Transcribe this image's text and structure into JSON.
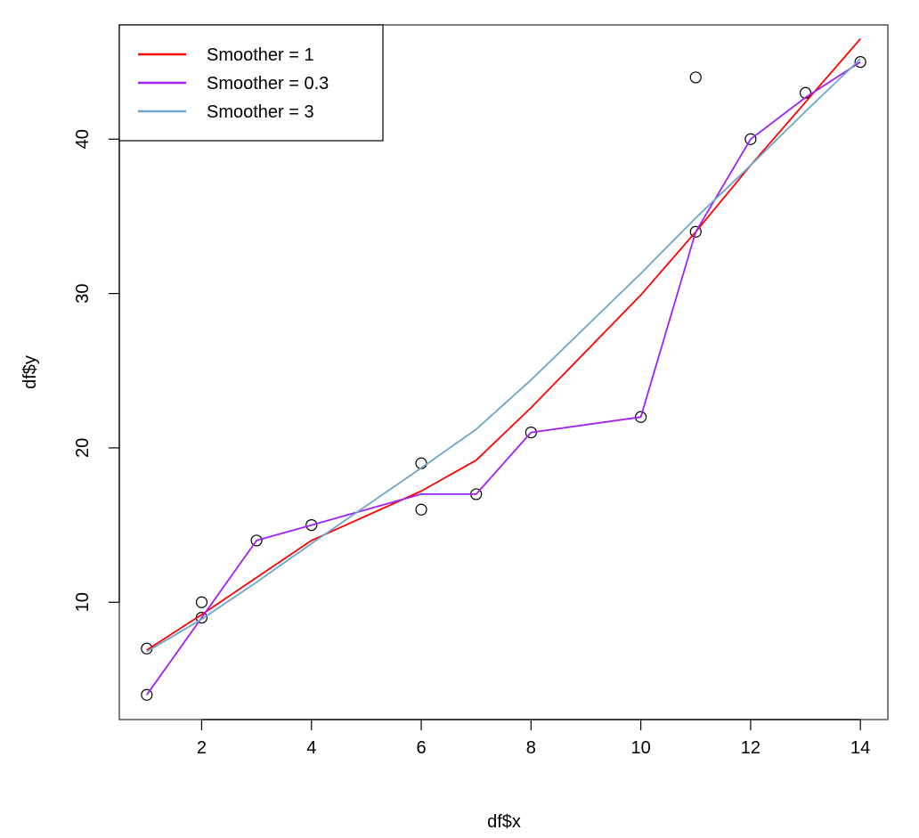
{
  "chart_data": {
    "type": "scatter",
    "xlabel": "df$x",
    "ylabel": "df$y",
    "xlim": [
      0.5,
      14.5
    ],
    "ylim": [
      2.4,
      47.4
    ],
    "xticks": [
      2,
      4,
      6,
      8,
      10,
      12,
      14
    ],
    "yticks": [
      10,
      20,
      30,
      40
    ],
    "grid": false,
    "legend_position": "top-left",
    "points": {
      "x": [
        1,
        1,
        2,
        2,
        3,
        4,
        6,
        6,
        7,
        8,
        10,
        11,
        11,
        12,
        13,
        14
      ],
      "y": [
        4,
        7,
        9,
        10,
        14,
        15,
        16,
        19,
        17,
        21,
        22,
        34,
        44,
        40,
        43,
        45
      ]
    },
    "series": [
      {
        "name": "Smoother = 1",
        "color": "#ff0000",
        "x": [
          1,
          2,
          3,
          4,
          6,
          7,
          8,
          10,
          11,
          12,
          13,
          14
        ],
        "y": [
          6.9,
          9.2,
          11.6,
          14.0,
          17.2,
          19.2,
          22.6,
          29.9,
          34.0,
          38.3,
          42.4,
          46.5
        ]
      },
      {
        "name": "Smoother = 0.3",
        "color": "#a020f0",
        "x": [
          1,
          2,
          3,
          4,
          6,
          7,
          8,
          10,
          11,
          12,
          13,
          14
        ],
        "y": [
          4.0,
          9.0,
          14.0,
          15.0,
          17.0,
          17.0,
          21.0,
          22.0,
          34.0,
          40.0,
          42.7,
          45.0
        ]
      },
      {
        "name": "Smoother = 3",
        "color": "#6ca6cd",
        "x": [
          1,
          2,
          3,
          4,
          6,
          7,
          8,
          10,
          11,
          12,
          13,
          14
        ],
        "y": [
          6.8,
          8.9,
          11.3,
          13.8,
          18.7,
          21.2,
          24.4,
          31.3,
          34.9,
          38.3,
          41.8,
          45.2
        ]
      }
    ]
  }
}
